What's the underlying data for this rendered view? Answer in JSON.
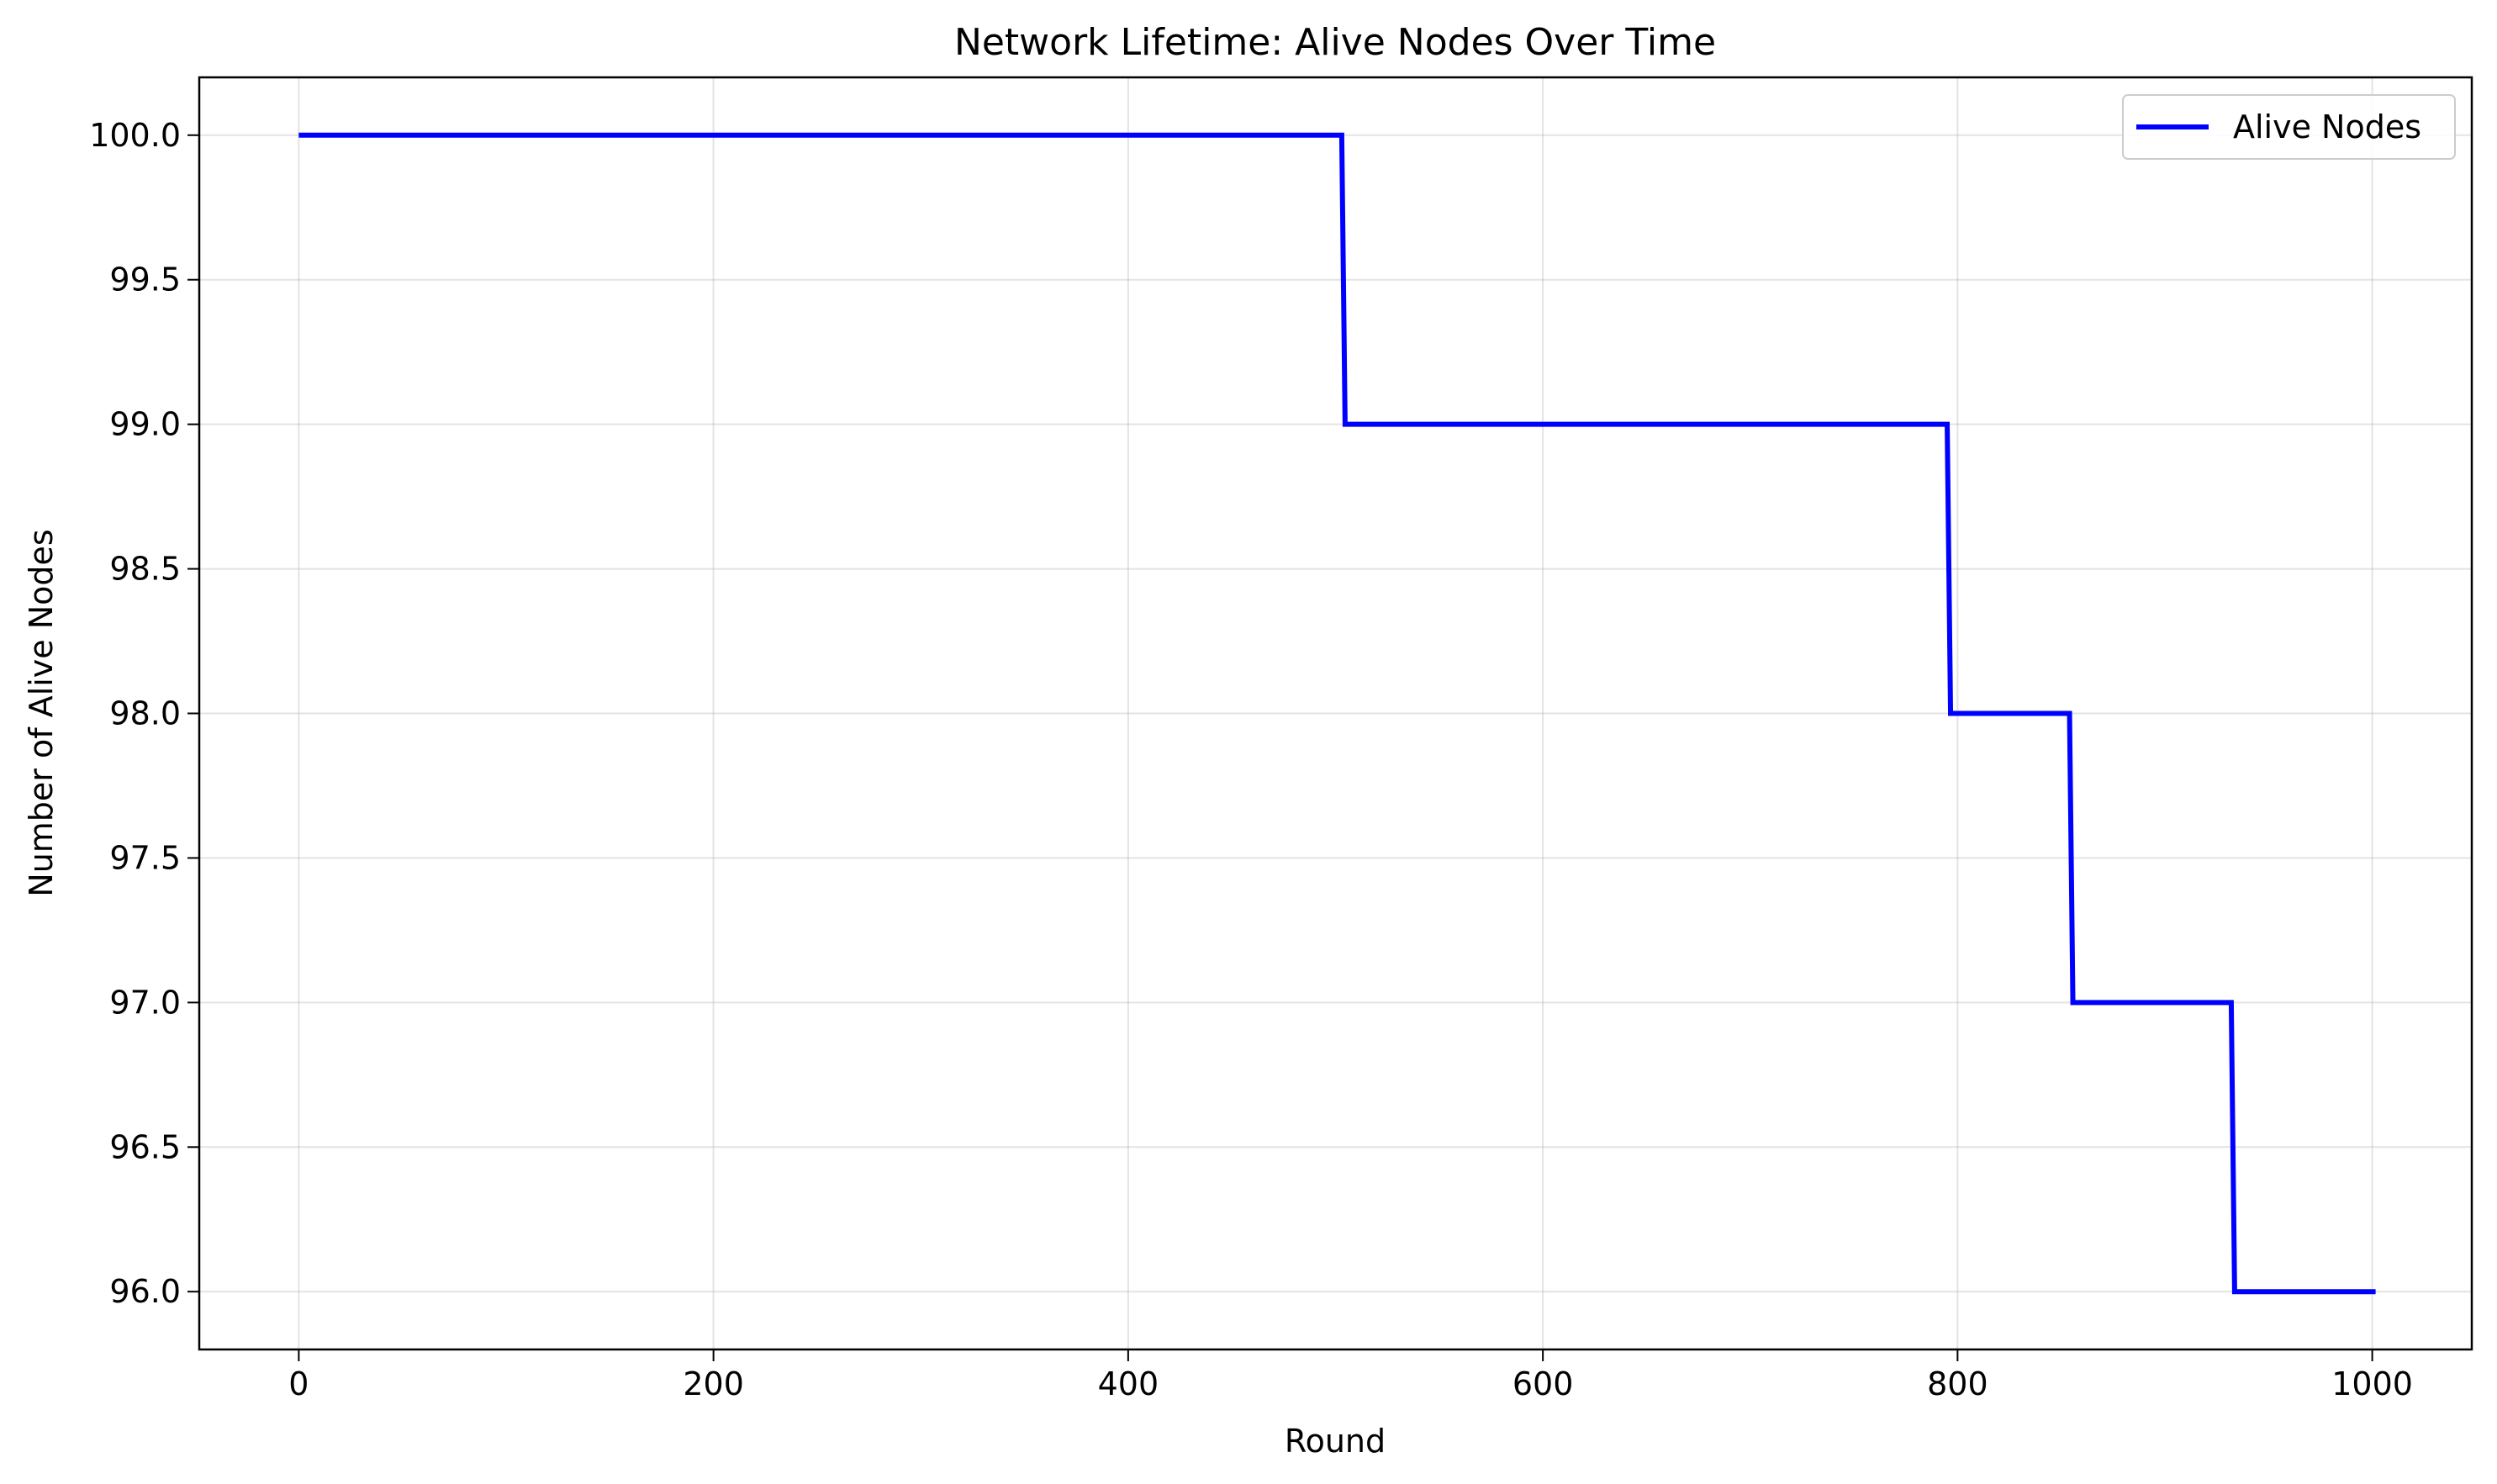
{
  "chart_data": {
    "type": "line",
    "title": "Network Lifetime: Alive Nodes Over Time",
    "xlabel": "Round",
    "ylabel": "Number of Alive Nodes",
    "xlim": [
      -48,
      1048
    ],
    "ylim": [
      95.8,
      100.2
    ],
    "xticks": [
      0,
      200,
      400,
      600,
      800,
      1000
    ],
    "xtick_labels": [
      "0",
      "200",
      "400",
      "600",
      "800",
      "1000"
    ],
    "yticks": [
      96.0,
      96.5,
      97.0,
      97.5,
      98.0,
      98.5,
      99.0,
      99.5,
      100.0
    ],
    "ytick_labels": [
      "96.0",
      "96.5",
      "97.0",
      "97.5",
      "98.0",
      "98.5",
      "99.0",
      "99.5",
      "100.0"
    ],
    "grid": true,
    "legend_position": "top-right",
    "series": [
      {
        "name": "Alive Nodes",
        "color": "#0000ff",
        "step": true,
        "x": [
          0,
          503,
          795,
          854,
          932,
          1000
        ],
        "y": [
          100,
          99,
          98,
          97,
          96,
          96
        ]
      }
    ]
  }
}
